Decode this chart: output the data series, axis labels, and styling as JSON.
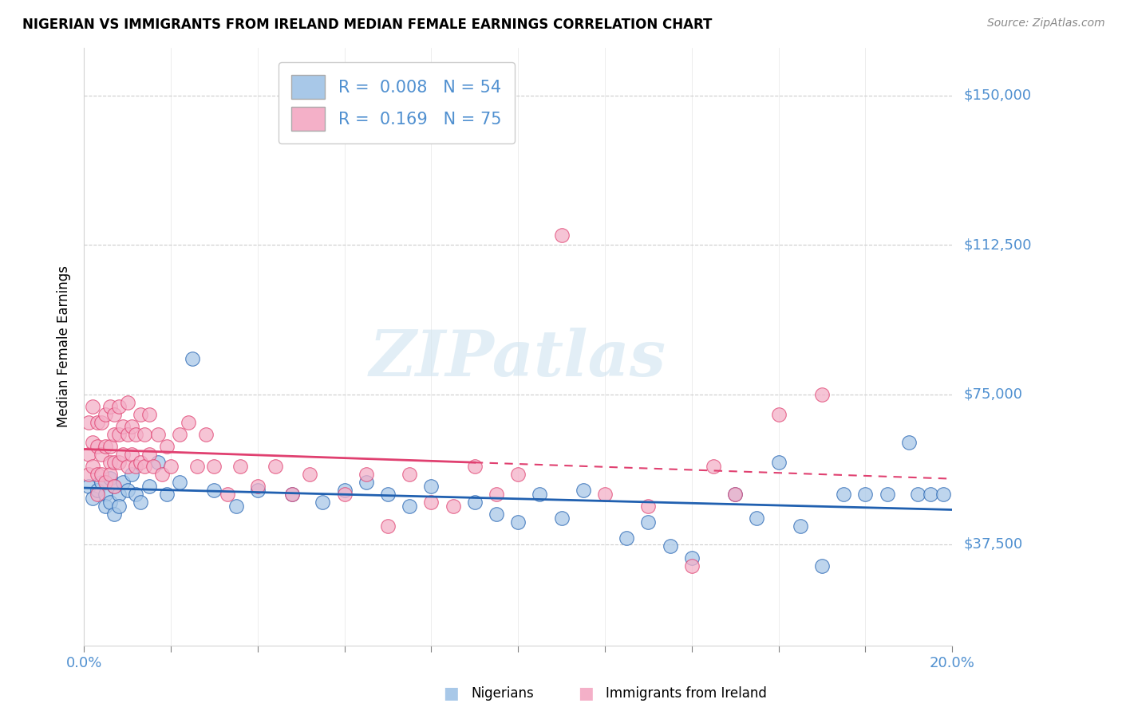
{
  "title": "NIGERIAN VS IMMIGRANTS FROM IRELAND MEDIAN FEMALE EARNINGS CORRELATION CHART",
  "source": "Source: ZipAtlas.com",
  "ylabel": "Median Female Earnings",
  "y_ticks": [
    37500,
    75000,
    112500,
    150000
  ],
  "y_tick_labels": [
    "$37,500",
    "$75,000",
    "$112,500",
    "$150,000"
  ],
  "xlim": [
    0.0,
    0.2
  ],
  "ylim": [
    12000,
    162000
  ],
  "color_blue": "#a8c8e8",
  "color_pink": "#f4b0c8",
  "color_blue_line": "#2060b0",
  "color_pink_line": "#e04070",
  "bg_color": "#ffffff",
  "grid_color": "#cccccc",
  "tick_color": "#5090d0",
  "nigerians_x": [
    0.001,
    0.002,
    0.003,
    0.004,
    0.005,
    0.005,
    0.006,
    0.006,
    0.007,
    0.007,
    0.008,
    0.008,
    0.009,
    0.01,
    0.011,
    0.012,
    0.013,
    0.015,
    0.017,
    0.019,
    0.022,
    0.025,
    0.03,
    0.035,
    0.04,
    0.048,
    0.055,
    0.06,
    0.065,
    0.07,
    0.075,
    0.08,
    0.09,
    0.095,
    0.1,
    0.105,
    0.11,
    0.115,
    0.125,
    0.13,
    0.135,
    0.14,
    0.15,
    0.155,
    0.16,
    0.165,
    0.17,
    0.175,
    0.18,
    0.185,
    0.19,
    0.192,
    0.195,
    0.198
  ],
  "nigerians_y": [
    52000,
    49000,
    51000,
    53000,
    50000,
    47000,
    54000,
    48000,
    52000,
    45000,
    50000,
    47000,
    53000,
    51000,
    55000,
    50000,
    48000,
    52000,
    58000,
    50000,
    53000,
    84000,
    51000,
    47000,
    51000,
    50000,
    48000,
    51000,
    53000,
    50000,
    47000,
    52000,
    48000,
    45000,
    43000,
    50000,
    44000,
    51000,
    39000,
    43000,
    37000,
    34000,
    50000,
    44000,
    58000,
    42000,
    32000,
    50000,
    50000,
    50000,
    63000,
    50000,
    50000,
    50000
  ],
  "ireland_x": [
    0.001,
    0.001,
    0.001,
    0.002,
    0.002,
    0.002,
    0.003,
    0.003,
    0.003,
    0.003,
    0.004,
    0.004,
    0.004,
    0.005,
    0.005,
    0.005,
    0.006,
    0.006,
    0.006,
    0.006,
    0.007,
    0.007,
    0.007,
    0.007,
    0.008,
    0.008,
    0.008,
    0.009,
    0.009,
    0.01,
    0.01,
    0.01,
    0.011,
    0.011,
    0.012,
    0.012,
    0.013,
    0.013,
    0.014,
    0.014,
    0.015,
    0.015,
    0.016,
    0.017,
    0.018,
    0.019,
    0.02,
    0.022,
    0.024,
    0.026,
    0.028,
    0.03,
    0.033,
    0.036,
    0.04,
    0.044,
    0.048,
    0.052,
    0.06,
    0.065,
    0.07,
    0.075,
    0.08,
    0.085,
    0.09,
    0.095,
    0.1,
    0.11,
    0.12,
    0.13,
    0.14,
    0.145,
    0.15,
    0.16,
    0.17
  ],
  "ireland_y": [
    60000,
    55000,
    68000,
    57000,
    63000,
    72000,
    55000,
    62000,
    68000,
    50000,
    60000,
    68000,
    55000,
    62000,
    70000,
    53000,
    62000,
    58000,
    72000,
    55000,
    58000,
    65000,
    70000,
    52000,
    58000,
    65000,
    72000,
    60000,
    67000,
    57000,
    65000,
    73000,
    60000,
    67000,
    57000,
    65000,
    58000,
    70000,
    57000,
    65000,
    60000,
    70000,
    57000,
    65000,
    55000,
    62000,
    57000,
    65000,
    68000,
    57000,
    65000,
    57000,
    50000,
    57000,
    52000,
    57000,
    50000,
    55000,
    50000,
    55000,
    42000,
    55000,
    48000,
    47000,
    57000,
    50000,
    55000,
    115000,
    50000,
    47000,
    32000,
    57000,
    50000,
    70000,
    75000
  ]
}
